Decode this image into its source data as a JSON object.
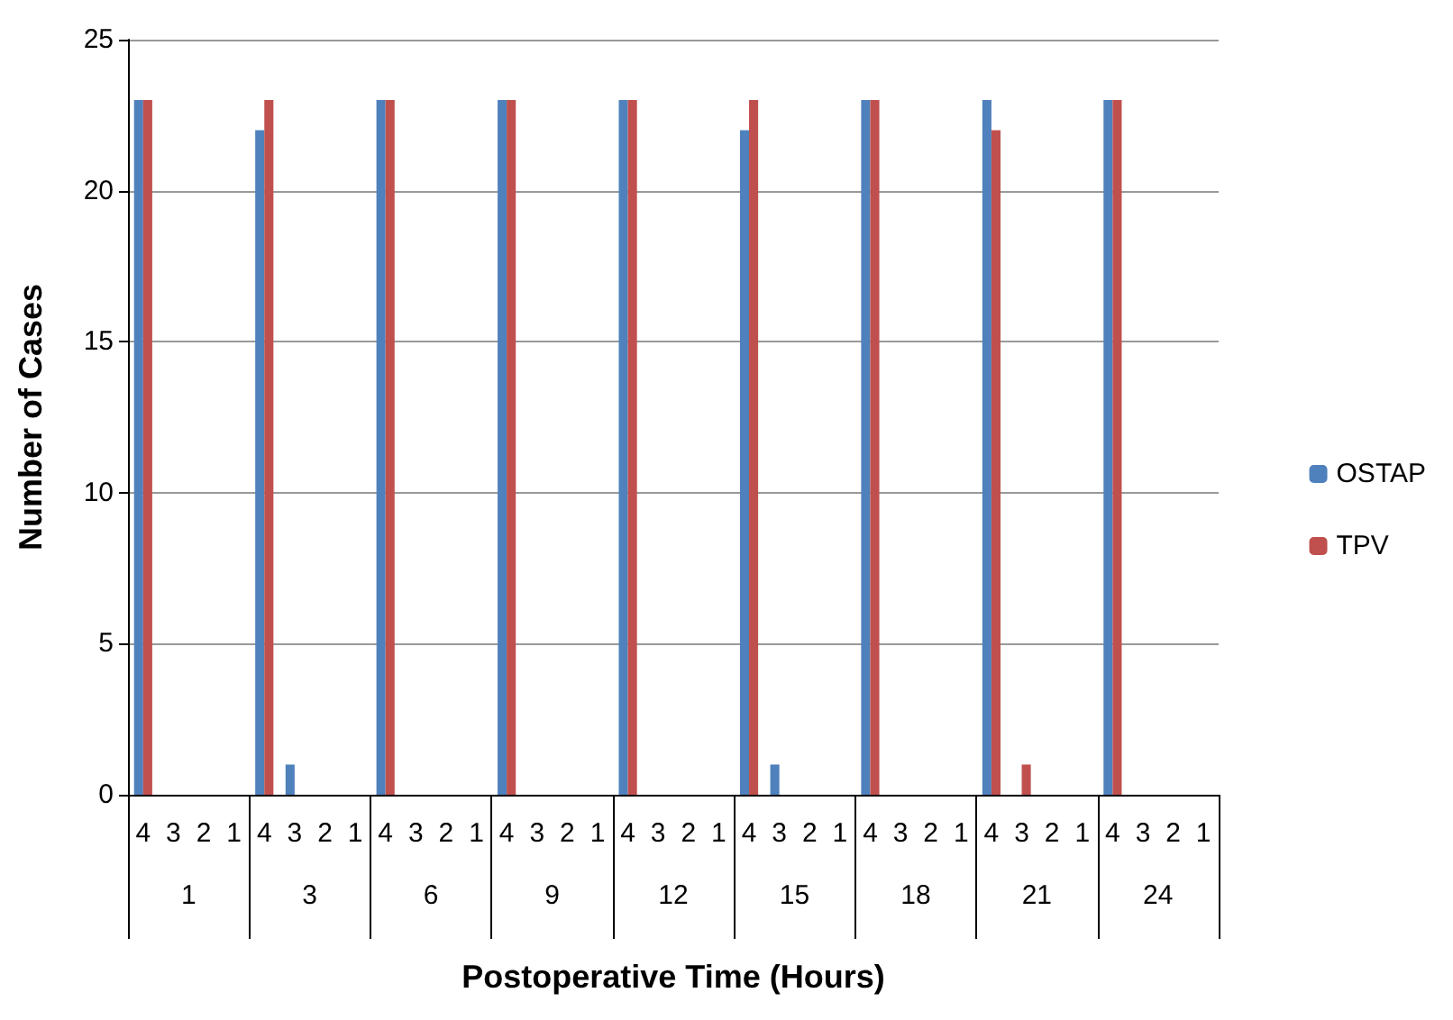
{
  "chart_data": {
    "type": "bar",
    "xlabel": "Postoperative Time (Hours)",
    "ylabel": "Number of Cases",
    "categories": [
      "4",
      "3",
      "2",
      "1",
      "4",
      "3",
      "2",
      "1",
      "4",
      "3",
      "2",
      "1",
      "4",
      "3",
      "2",
      "1",
      "4",
      "3",
      "2",
      "1",
      "4",
      "3",
      "2",
      "1",
      "4",
      "3",
      "2",
      "1",
      "4",
      "3",
      "2",
      "1",
      "4",
      "3",
      "2",
      "1"
    ],
    "annotations": [
      "1",
      "3",
      "6",
      "9",
      "12",
      "15",
      "18",
      "21",
      "24"
    ],
    "series": [
      {
        "name": "OSTAP",
        "color": "#4f81bd",
        "values": [
          23,
          0,
          0,
          0,
          22,
          1,
          0,
          0,
          23,
          0,
          0,
          0,
          23,
          0,
          0,
          0,
          23,
          0,
          0,
          0,
          22,
          1,
          0,
          0,
          23,
          0,
          0,
          0,
          23,
          0,
          0,
          0,
          23,
          0,
          0,
          0
        ]
      },
      {
        "name": "TPV",
        "color": "#c0504d",
        "values": [
          23,
          0,
          0,
          0,
          23,
          0,
          0,
          0,
          23,
          0,
          0,
          0,
          23,
          0,
          0,
          0,
          23,
          0,
          0,
          0,
          23,
          0,
          0,
          0,
          23,
          0,
          0,
          0,
          22,
          1,
          0,
          0,
          23,
          0,
          0,
          0
        ]
      }
    ],
    "ylim": [
      0,
      25
    ],
    "yticks": [
      0,
      5,
      10,
      15,
      20,
      25
    ],
    "grid": "y",
    "legend": "right"
  }
}
